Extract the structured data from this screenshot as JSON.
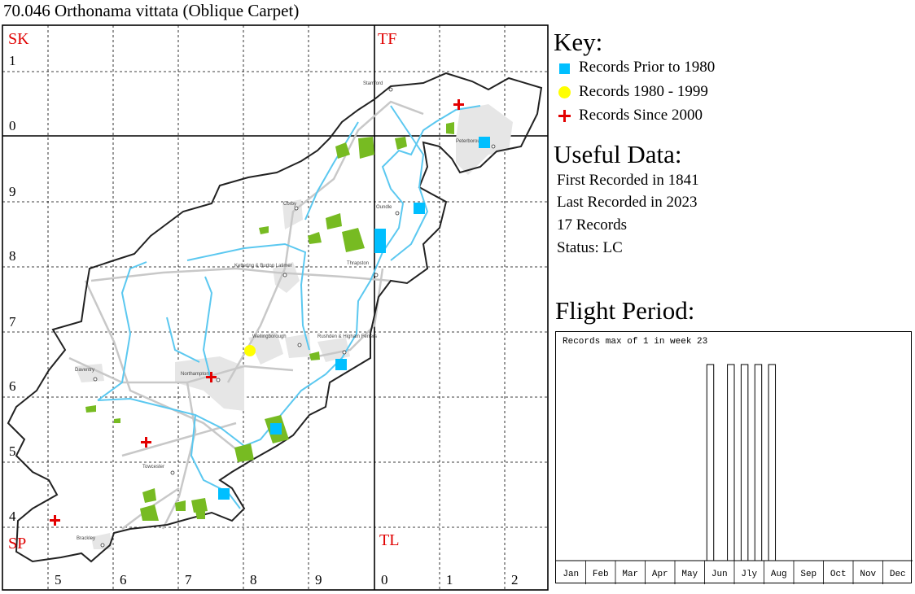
{
  "title": "70.046 Orthonama vittata (Oblique Carpet)",
  "map": {
    "grid_squares": {
      "top_left": "SK",
      "top_right": "TF",
      "bottom_left": "SP",
      "bottom_right": "TL"
    },
    "row_labels": [
      "1",
      "0",
      "9",
      "8",
      "7",
      "6",
      "5",
      "4"
    ],
    "col_labels": [
      "5",
      "6",
      "7",
      "8",
      "9",
      "0",
      "1",
      "2"
    ],
    "places": [
      "Stamford",
      "Peterborough",
      "Corby",
      "Oundle",
      "Kettering & Burton Latimer",
      "Thrapston",
      "Wellingborough",
      "Rushden & Higham Ferrers",
      "Daventry",
      "Northampton",
      "Towcester",
      "Brackley"
    ],
    "colors": {
      "square_label": "#e00000",
      "record_pre1980": "#00bfff",
      "record_1980_1999": "#ffff00",
      "record_since2000": "#e30000",
      "river": "#5bc8f0",
      "road": "#c8c8c8",
      "urban": "#e6e6e6",
      "woodland": "#77bb22"
    },
    "records": [
      {
        "period": "pre1980",
        "grid": "TF1.0"
      },
      {
        "period": "pre1980",
        "grid": "TL0.8"
      },
      {
        "period": "pre1980",
        "grid": "TL0.8"
      },
      {
        "period": "pre1980",
        "grid": "TL0.8"
      },
      {
        "period": "pre1980",
        "grid": "SP9.6"
      },
      {
        "period": "pre1980",
        "grid": "SP8.5"
      },
      {
        "period": "pre1980",
        "grid": "SP7.4"
      },
      {
        "period": "1980-1999",
        "grid": "SP8.6"
      },
      {
        "period": "since2000",
        "grid": "TF1.1"
      },
      {
        "period": "since2000",
        "grid": "SP7.6"
      },
      {
        "period": "since2000",
        "grid": "SP6.5"
      },
      {
        "period": "since2000",
        "grid": "SP5.3"
      }
    ]
  },
  "key": {
    "title": "Key:",
    "items": [
      {
        "label": "Records Prior to 1980",
        "symbol": "square"
      },
      {
        "label": "Records 1980 - 1999",
        "symbol": "circle"
      },
      {
        "label": "Records Since 2000",
        "symbol": "cross"
      }
    ]
  },
  "useful_data": {
    "title": "Useful Data:",
    "first_recorded": "First Recorded in 1841",
    "last_recorded": "Last Recorded in 2023",
    "record_count": "17 Records",
    "status": "Status: LC"
  },
  "flight_period": {
    "title": "Flight Period:",
    "caption": "Records max of 1 in week 23",
    "months": [
      "Jan",
      "Feb",
      "Mar",
      "Apr",
      "May",
      "Jun",
      "Jly",
      "Aug",
      "Sep",
      "Oct",
      "Nov",
      "Dec"
    ]
  },
  "chart_data": {
    "type": "bar",
    "x_label": "week",
    "bars": [
      {
        "week": 23,
        "value": 1
      },
      {
        "week": 24,
        "value": 0
      },
      {
        "week": 25,
        "value": 0
      },
      {
        "week": 26,
        "value": 1
      },
      {
        "week": 27,
        "value": 0
      },
      {
        "week": 28,
        "value": 1
      },
      {
        "week": 29,
        "value": 0
      },
      {
        "week": 30,
        "value": 1
      },
      {
        "week": 31,
        "value": 0
      },
      {
        "week": 32,
        "value": 1
      }
    ],
    "ylim": [
      0,
      1
    ]
  }
}
